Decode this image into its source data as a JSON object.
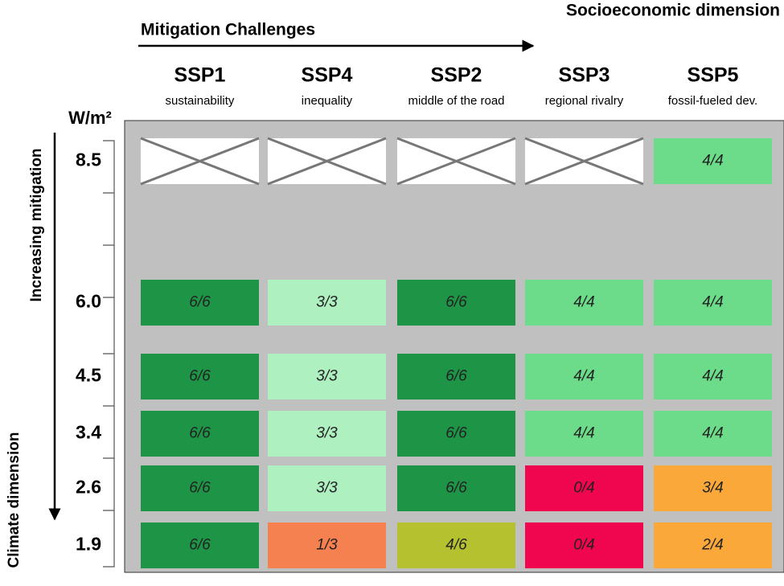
{
  "header": {
    "mitigation_axis": "Mitigation Challenges",
    "socioeconomic_axis": "Socioeconomic dimension"
  },
  "columns": [
    {
      "name": "SSP1",
      "subtitle": "sustainability"
    },
    {
      "name": "SSP4",
      "subtitle": "inequality"
    },
    {
      "name": "SSP2",
      "subtitle": "middle of the road"
    },
    {
      "name": "SSP3",
      "subtitle": "regional rivalry"
    },
    {
      "name": "SSP5",
      "subtitle": "fossil-fueled dev."
    }
  ],
  "row_axis": {
    "unit": "W/m²",
    "mitigation_label": "Increasing mitigation",
    "climate_label": "Climate dimension"
  },
  "rows": [
    {
      "label": "8.5",
      "cells": [
        null,
        null,
        null,
        null,
        {
          "text": "4/4",
          "color": "#6cdc8a"
        }
      ]
    },
    {
      "label": "6.0",
      "cells": [
        {
          "text": "6/6",
          "color": "#1e9447"
        },
        {
          "text": "3/3",
          "color": "#aef0c0"
        },
        {
          "text": "6/6",
          "color": "#1e9447"
        },
        {
          "text": "4/4",
          "color": "#6cdc8a"
        },
        {
          "text": "4/4",
          "color": "#6cdc8a"
        }
      ]
    },
    {
      "label": "4.5",
      "cells": [
        {
          "text": "6/6",
          "color": "#1e9447"
        },
        {
          "text": "3/3",
          "color": "#aef0c0"
        },
        {
          "text": "6/6",
          "color": "#1e9447"
        },
        {
          "text": "4/4",
          "color": "#6cdc8a"
        },
        {
          "text": "4/4",
          "color": "#6cdc8a"
        }
      ]
    },
    {
      "label": "3.4",
      "cells": [
        {
          "text": "6/6",
          "color": "#1e9447"
        },
        {
          "text": "3/3",
          "color": "#aef0c0"
        },
        {
          "text": "6/6",
          "color": "#1e9447"
        },
        {
          "text": "4/4",
          "color": "#6cdc8a"
        },
        {
          "text": "4/4",
          "color": "#6cdc8a"
        }
      ]
    },
    {
      "label": "2.6",
      "cells": [
        {
          "text": "6/6",
          "color": "#1e9447"
        },
        {
          "text": "3/3",
          "color": "#aef0c0"
        },
        {
          "text": "6/6",
          "color": "#1e9447"
        },
        {
          "text": "0/4",
          "color": "#f0064e"
        },
        {
          "text": "3/4",
          "color": "#fba83a"
        }
      ]
    },
    {
      "label": "1.9",
      "cells": [
        {
          "text": "6/6",
          "color": "#1e9447"
        },
        {
          "text": "1/3",
          "color": "#f58050"
        },
        {
          "text": "4/6",
          "color": "#b5c12f"
        },
        {
          "text": "0/4",
          "color": "#f0064e"
        },
        {
          "text": "2/4",
          "color": "#fba83a"
        }
      ]
    }
  ]
}
